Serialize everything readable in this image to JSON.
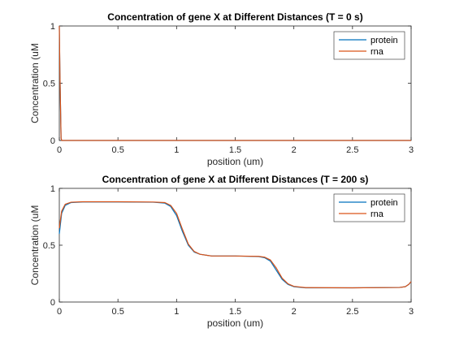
{
  "chart_data": [
    {
      "type": "line",
      "title": "Concentration of gene X at Different Distances (T = 0 s)",
      "xlabel": "position (um)",
      "ylabel": "Concentration (uM",
      "xlim": [
        0,
        3
      ],
      "ylim": [
        0,
        1
      ],
      "xticks": [
        0,
        0.5,
        1,
        1.5,
        2,
        2.5,
        3
      ],
      "xtick_labels": [
        "0",
        "0.5",
        "1",
        "1.5",
        "2",
        "2.5",
        "3"
      ],
      "yticks": [
        0,
        0.5,
        1
      ],
      "ytick_labels": [
        "0",
        "0.5",
        "1"
      ],
      "grid": false,
      "legend_position": "top-right",
      "series": [
        {
          "name": "protein",
          "color": "#0072BD",
          "x": [
            0,
            0.005,
            0.015,
            0.02,
            0.03,
            0.5,
            1,
            1.5,
            2,
            2.5,
            3
          ],
          "y": [
            1,
            0.6,
            0.02,
            0,
            0,
            0,
            0,
            0,
            0,
            0,
            0
          ]
        },
        {
          "name": "rna",
          "color": "#D95319",
          "x": [
            0,
            0.005,
            0.015,
            0.02,
            0.03,
            0.5,
            1,
            1.5,
            2,
            2.5,
            3
          ],
          "y": [
            1,
            0.6,
            0.02,
            0,
            0,
            0,
            0,
            0,
            0,
            0,
            0
          ]
        }
      ]
    },
    {
      "type": "line",
      "title": "Concentration of gene X at Different Distances (T = 200 s)",
      "xlabel": "position (um)",
      "ylabel": "Concentration (uM",
      "xlim": [
        0,
        3
      ],
      "ylim": [
        0,
        1
      ],
      "xticks": [
        0,
        0.5,
        1,
        1.5,
        2,
        2.5,
        3
      ],
      "xtick_labels": [
        "0",
        "0.5",
        "1",
        "1.5",
        "2",
        "2.5",
        "3"
      ],
      "yticks": [
        0,
        0.5,
        1
      ],
      "ytick_labels": [
        "0",
        "0.5",
        "1"
      ],
      "grid": false,
      "legend_position": "top-right",
      "series": [
        {
          "name": "protein",
          "color": "#0072BD",
          "x": [
            0,
            0.02,
            0.05,
            0.1,
            0.2,
            0.5,
            0.8,
            0.9,
            0.95,
            1.0,
            1.05,
            1.1,
            1.15,
            1.2,
            1.3,
            1.5,
            1.7,
            1.75,
            1.8,
            1.85,
            1.9,
            1.95,
            2.0,
            2.1,
            2.5,
            2.9,
            2.95,
            2.98,
            3.0
          ],
          "y": [
            0.6,
            0.78,
            0.85,
            0.875,
            0.88,
            0.88,
            0.878,
            0.87,
            0.84,
            0.76,
            0.62,
            0.5,
            0.44,
            0.42,
            0.405,
            0.405,
            0.4,
            0.39,
            0.36,
            0.28,
            0.2,
            0.155,
            0.135,
            0.125,
            0.125,
            0.128,
            0.135,
            0.155,
            0.18
          ]
        },
        {
          "name": "rna",
          "color": "#D95319",
          "x": [
            0,
            0.02,
            0.05,
            0.1,
            0.2,
            0.5,
            0.8,
            0.9,
            0.95,
            1.0,
            1.05,
            1.1,
            1.15,
            1.2,
            1.3,
            1.5,
            1.7,
            1.75,
            1.8,
            1.85,
            1.9,
            1.95,
            2.0,
            2.1,
            2.5,
            2.9,
            2.95,
            2.98,
            3.0
          ],
          "y": [
            0.65,
            0.8,
            0.86,
            0.878,
            0.882,
            0.882,
            0.88,
            0.875,
            0.85,
            0.78,
            0.64,
            0.51,
            0.445,
            0.42,
            0.405,
            0.405,
            0.402,
            0.395,
            0.37,
            0.3,
            0.21,
            0.16,
            0.138,
            0.127,
            0.125,
            0.128,
            0.135,
            0.155,
            0.18
          ]
        }
      ]
    }
  ]
}
